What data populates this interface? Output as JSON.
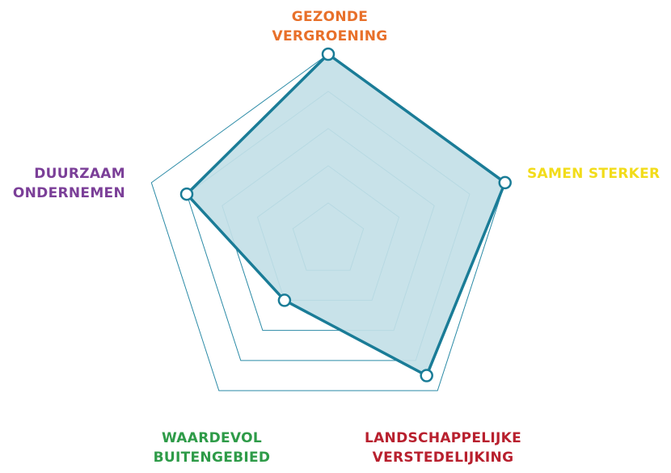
{
  "chart_data": {
    "type": "radar",
    "title": "",
    "axes": [
      {
        "label_lines": [
          "GEZONDE",
          "VERGROENING"
        ],
        "color": "#E8702A"
      },
      {
        "label_lines": [
          "SAMEN STERKER"
        ],
        "color": "#F2DC1A"
      },
      {
        "label_lines": [
          "LANDSCHAPPELIJKE",
          "VERSTEDELIJKING"
        ],
        "color": "#B8202E"
      },
      {
        "label_lines": [
          "WAARDEVOL",
          "BUITENGEBIED"
        ],
        "color": "#2E9B48"
      },
      {
        "label_lines": [
          "DUURZAAM",
          "ONDERNEMEN"
        ],
        "color": "#7B3F98"
      }
    ],
    "rings": 5,
    "range": [
      0,
      5
    ],
    "series": [
      {
        "values": [
          5,
          5,
          4.5,
          2,
          4
        ]
      }
    ],
    "colors": {
      "grid": "#2A8AA6",
      "line": "#1A7C97",
      "fill": "#C3DFE7",
      "marker_fill": "#ffffff"
    },
    "grid": true,
    "legend": "none"
  }
}
